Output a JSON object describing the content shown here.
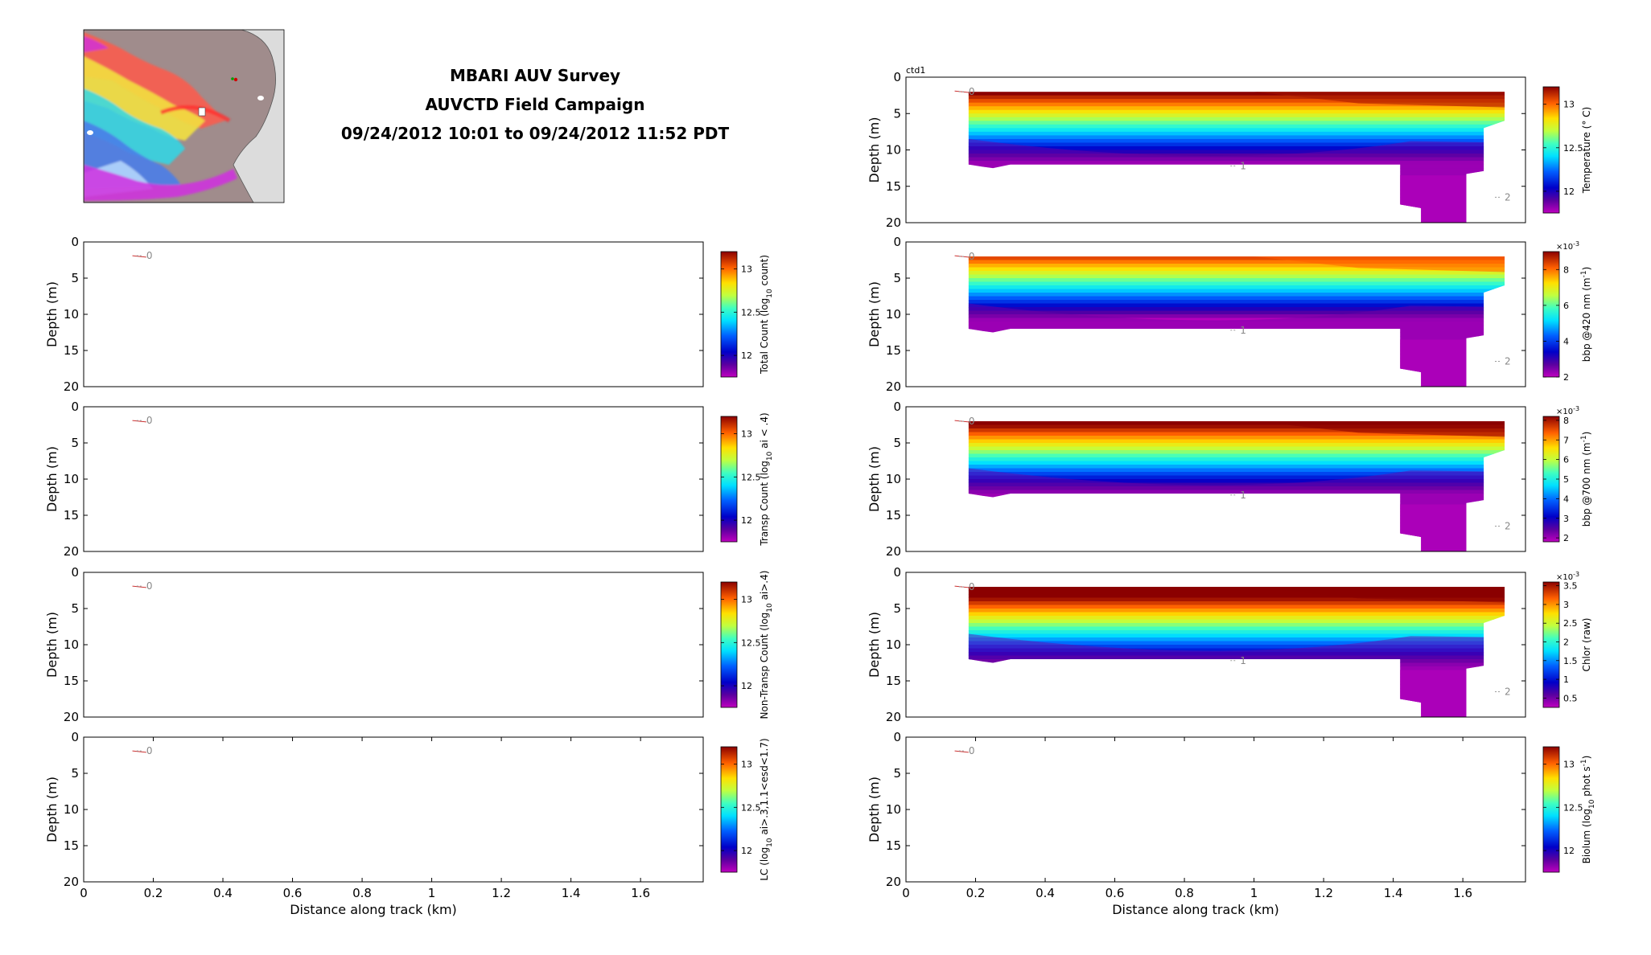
{
  "header": {
    "title_lines": [
      "MBARI AUV Survey",
      "AUVCTD Field Campaign",
      "09/24/2012 10:01 to 09/24/2012 11:52 PDT"
    ]
  },
  "chart_data": [
    {
      "type": "heatmap",
      "panel": "left-1",
      "xlabel": "",
      "ylabel": "Depth (m)",
      "xlim": [
        0,
        1.78
      ],
      "ylim": [
        20,
        0
      ],
      "y_ticks": [
        0,
        5,
        10,
        15,
        20
      ],
      "x_ticks": [],
      "colorbar": {
        "label": "Total Count (log10 count)",
        "ticks": [
          12,
          12.5,
          13
        ],
        "range": [
          11.75,
          13.2
        ]
      },
      "contours": [
        {
          "label": "0",
          "x": 0.18,
          "y": 1.9
        }
      ],
      "filled": false
    },
    {
      "type": "heatmap",
      "panel": "left-2",
      "xlabel": "",
      "ylabel": "Depth (m)",
      "xlim": [
        0,
        1.78
      ],
      "ylim": [
        20,
        0
      ],
      "y_ticks": [
        0,
        5,
        10,
        15,
        20
      ],
      "x_ticks": [],
      "colorbar": {
        "label": "Transp Count (log10 ai < .4)",
        "ticks": [
          12,
          12.5,
          13
        ],
        "range": [
          11.75,
          13.2
        ]
      },
      "contours": [
        {
          "label": "0",
          "x": 0.18,
          "y": 1.9
        }
      ],
      "filled": false
    },
    {
      "type": "heatmap",
      "panel": "left-3",
      "xlabel": "",
      "ylabel": "Depth (m)",
      "xlim": [
        0,
        1.78
      ],
      "ylim": [
        20,
        0
      ],
      "y_ticks": [
        0,
        5,
        10,
        15,
        20
      ],
      "x_ticks": [],
      "colorbar": {
        "label": "Non-Transp Count (log10 ai>.4)",
        "ticks": [
          12,
          12.5,
          13
        ],
        "range": [
          11.75,
          13.2
        ]
      },
      "contours": [
        {
          "label": "0",
          "x": 0.18,
          "y": 1.9
        }
      ],
      "filled": false
    },
    {
      "type": "heatmap",
      "panel": "left-4",
      "xlabel": "Distance along track (km)",
      "ylabel": "Depth (m)",
      "xlim": [
        0,
        1.78
      ],
      "ylim": [
        20,
        0
      ],
      "y_ticks": [
        0,
        5,
        10,
        15,
        20
      ],
      "x_ticks": [
        0,
        0.2,
        0.4,
        0.6,
        0.8,
        1,
        1.2,
        1.4,
        1.6
      ],
      "x_tick_labels": [
        "0",
        "0.2",
        "0.4",
        "0.6",
        "0.8",
        "1",
        "1.2",
        "1.4",
        "1.6"
      ],
      "colorbar": {
        "label": "LC (log10 ai>.3,1.1<esd<1.7)",
        "ticks": [
          12,
          12.5,
          13
        ],
        "range": [
          11.75,
          13.2
        ]
      },
      "contours": [
        {
          "label": "0",
          "x": 0.18,
          "y": 1.9
        }
      ],
      "filled": false
    },
    {
      "type": "heatmap",
      "panel": "right-0",
      "annotation": "ctd1",
      "xlabel": "",
      "ylabel": "Depth (m)",
      "xlim": [
        0,
        1.78
      ],
      "ylim": [
        20,
        0
      ],
      "y_ticks": [
        0,
        5,
        10,
        15,
        20
      ],
      "x_ticks": [],
      "colorbar": {
        "label": "Temperature (° C)",
        "ticks": [
          12,
          12.5,
          13
        ],
        "range": [
          11.75,
          13.2
        ]
      },
      "contours": [
        {
          "label": "0",
          "x": 0.18,
          "y": 2.0
        },
        {
          "label": "1",
          "x": 0.96,
          "y": 12.2
        },
        {
          "label": "2",
          "x": 1.72,
          "y": 16.5
        }
      ],
      "filled": true,
      "surface_low": 0.75
    },
    {
      "type": "heatmap",
      "panel": "right-1",
      "xlabel": "",
      "ylabel": "Depth (m)",
      "xlim": [
        0,
        1.78
      ],
      "ylim": [
        20,
        0
      ],
      "y_ticks": [
        0,
        5,
        10,
        15,
        20
      ],
      "x_ticks": [],
      "colorbar": {
        "label": "bbp @420 nm (m^-1)",
        "ticks": [
          2,
          4,
          6,
          8
        ],
        "range": [
          2,
          9
        ],
        "exponent": "×10^-3"
      },
      "contours": [
        {
          "label": "0",
          "x": 0.18,
          "y": 2.0
        },
        {
          "label": "1",
          "x": 0.96,
          "y": 12.2
        },
        {
          "label": "2",
          "x": 1.72,
          "y": 16.5
        }
      ],
      "filled": true,
      "surface_low": 0.65
    },
    {
      "type": "heatmap",
      "panel": "right-2",
      "xlabel": "",
      "ylabel": "Depth (m)",
      "xlim": [
        0,
        1.78
      ],
      "ylim": [
        20,
        0
      ],
      "y_ticks": [
        0,
        5,
        10,
        15,
        20
      ],
      "x_ticks": [],
      "colorbar": {
        "label": "bbp @700 nm (m^-1)",
        "ticks": [
          2,
          3,
          4,
          5,
          6,
          7,
          8
        ],
        "range": [
          1.8,
          8.2
        ],
        "exponent": "×10^-3"
      },
      "contours": [
        {
          "label": "0",
          "x": 0.18,
          "y": 2.0
        },
        {
          "label": "1",
          "x": 0.96,
          "y": 12.2
        },
        {
          "label": "2",
          "x": 1.72,
          "y": 16.5
        }
      ],
      "filled": true,
      "surface_low": 0.78
    },
    {
      "type": "heatmap",
      "panel": "right-3",
      "xlabel": "",
      "ylabel": "Depth (m)",
      "xlim": [
        0,
        1.78
      ],
      "ylim": [
        20,
        0
      ],
      "y_ticks": [
        0,
        5,
        10,
        15,
        20
      ],
      "x_ticks": [],
      "colorbar": {
        "label": "Chlor (raw)",
        "ticks": [
          0.5,
          1,
          1.5,
          2,
          2.5,
          3,
          3.5
        ],
        "range": [
          0.25,
          3.6
        ],
        "exponent": "×10^-3"
      },
      "contours": [
        {
          "label": "0",
          "x": 0.18,
          "y": 2.0
        },
        {
          "label": "1",
          "x": 0.96,
          "y": 12.2
        },
        {
          "label": "2",
          "x": 1.72,
          "y": 16.5
        }
      ],
      "filled": true,
      "surface_low": 0.88
    },
    {
      "type": "heatmap",
      "panel": "right-4",
      "xlabel": "Distance along track (km)",
      "ylabel": "Depth (m)",
      "xlim": [
        0,
        1.78
      ],
      "ylim": [
        20,
        0
      ],
      "y_ticks": [
        0,
        5,
        10,
        15,
        20
      ],
      "x_ticks": [
        0,
        0.2,
        0.4,
        0.6,
        0.8,
        1,
        1.2,
        1.4,
        1.6
      ],
      "x_tick_labels": [
        "0",
        "0.2",
        "0.4",
        "0.6",
        "0.8",
        "1",
        "1.2",
        "1.4",
        "1.6"
      ],
      "colorbar": {
        "label": "Biolum (log10 phot s^-1)",
        "ticks": [
          12,
          12.5,
          13
        ],
        "range": [
          11.75,
          13.2
        ]
      },
      "contours": [
        {
          "label": "0",
          "x": 0.18,
          "y": 1.9
        }
      ],
      "filled": false
    }
  ]
}
